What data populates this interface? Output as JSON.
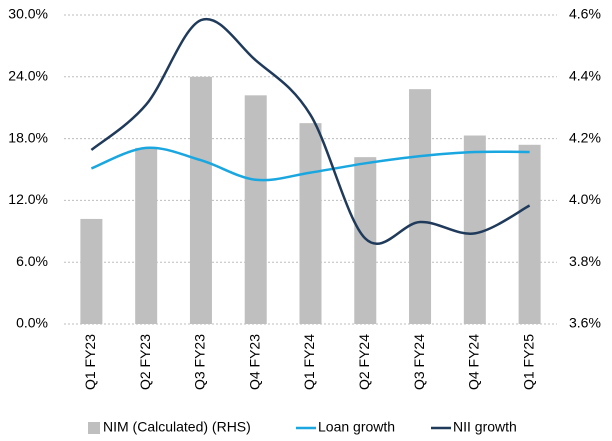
{
  "chart_data": {
    "type": "combo",
    "categories": [
      "Q1 FY23",
      "Q2 FY23",
      "Q3 FY23",
      "Q4 FY23",
      "Q1 FY24",
      "Q2 FY24",
      "Q3 FY24",
      "Q4 FY24",
      "Q1 FY25"
    ],
    "series": [
      {
        "name": "NIM (Calculated) (RHS)",
        "type": "bar",
        "axis": "y2",
        "color": "#bfbfbf",
        "values": [
          3.94,
          4.17,
          4.4,
          4.34,
          4.25,
          4.14,
          4.36,
          4.21,
          4.18
        ]
      },
      {
        "name": "Loan growth",
        "type": "line",
        "color": "#1aa7e0",
        "values": [
          15.1,
          17.1,
          15.9,
          14.0,
          14.7,
          15.6,
          16.3,
          16.7,
          16.7
        ]
      },
      {
        "name": "NII growth",
        "type": "line",
        "color": "#1f3a5a",
        "values": [
          16.9,
          21.3,
          29.5,
          25.6,
          20.3,
          8.3,
          9.9,
          8.8,
          11.5
        ]
      }
    ],
    "ylim": [
      0,
      30
    ],
    "yticks": [
      {
        "value": 0,
        "label": "0.0%"
      },
      {
        "value": 6,
        "label": "6.0%"
      },
      {
        "value": 12,
        "label": "12.0%"
      },
      {
        "value": 18,
        "label": "18.0%"
      },
      {
        "value": 24,
        "label": "24.0%"
      },
      {
        "value": 30,
        "label": "30.0%"
      }
    ],
    "y2lim": [
      3.6,
      4.6
    ],
    "y2ticks": [
      {
        "value": 3.6,
        "label": "3.6%"
      },
      {
        "value": 3.8,
        "label": "3.8%"
      },
      {
        "value": 4.0,
        "label": "4.0%"
      },
      {
        "value": 4.2,
        "label": "4.2%"
      },
      {
        "value": 4.4,
        "label": "4.4%"
      },
      {
        "value": 4.6,
        "label": "4.6%"
      }
    ],
    "grid": true,
    "legend": "bottom"
  }
}
